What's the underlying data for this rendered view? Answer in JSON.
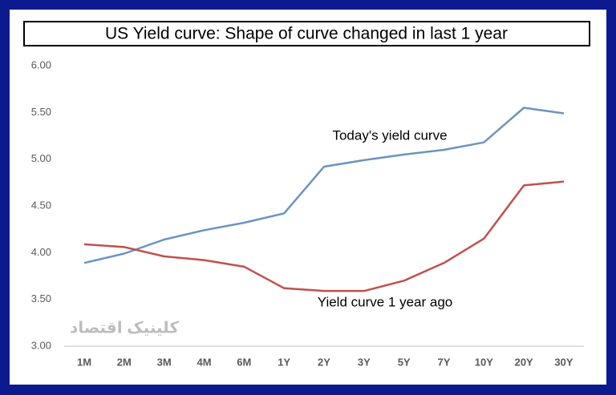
{
  "chart_data": {
    "type": "line",
    "title": "US Yield curve: Shape of curve changed in last 1 year",
    "categories": [
      "1M",
      "2M",
      "3M",
      "4M",
      "6M",
      "1Y",
      "2Y",
      "3Y",
      "5Y",
      "7Y",
      "10Y",
      "20Y",
      "30Y"
    ],
    "series": [
      {
        "name": "Today's yield curve",
        "color": "#6a93c2",
        "values": [
          3.89,
          3.99,
          4.14,
          4.24,
          4.32,
          4.42,
          4.92,
          4.99,
          5.05,
          5.1,
          5.18,
          5.55,
          5.49
        ]
      },
      {
        "name": "Yield curve 1 year ago",
        "color": "#c0504d",
        "values": [
          4.09,
          4.06,
          3.96,
          3.92,
          3.85,
          3.62,
          3.59,
          3.59,
          3.7,
          3.89,
          4.15,
          4.72,
          4.76
        ]
      }
    ],
    "ylim": [
      3,
      6
    ],
    "yticks": [
      {
        "value": 3,
        "label": "3.00"
      },
      {
        "value": 3.5,
        "label": "3.50"
      },
      {
        "value": 4,
        "label": "4.00"
      },
      {
        "value": 4.5,
        "label": "4.50"
      },
      {
        "value": 5,
        "label": "5.00"
      },
      {
        "value": 5.5,
        "label": "5.50"
      },
      {
        "value": 6,
        "label": "6.00"
      }
    ],
    "grid": false,
    "watermark": "کلینیک اقتصاد"
  }
}
